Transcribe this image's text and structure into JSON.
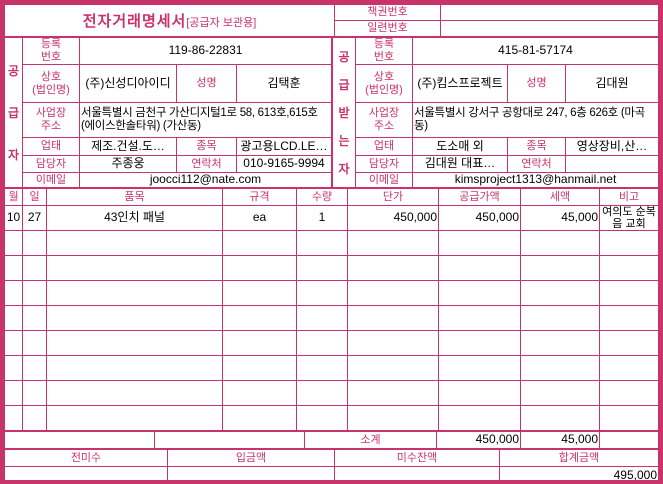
{
  "colors": {
    "accent": "#C8336A",
    "value_text": "#000000",
    "background": "#FFFFFF"
  },
  "header": {
    "title": "전자거래명세서",
    "title_suffix": "[공급자 보관용]",
    "book_no_label": "책권번호",
    "book_no_value": "",
    "serial_no_label": "일련번호",
    "serial_no_value": ""
  },
  "supplier": {
    "side_label": "공급자",
    "reg_no_label": "등록\n번호",
    "reg_no": "119-86-22831",
    "company_label": "상호\n(법인명)",
    "company": "(주)신성디아이디",
    "name_label": "성명",
    "name": "김택훈",
    "address_label": "사업장\n주소",
    "address": "서울특별시 금천구 가산디지털1로 58, 613호,615호(에이스한솔타워) (가산동)",
    "biz_type_label": "업태",
    "biz_type": "제조.건설.도…",
    "item_label": "종목",
    "item": "광고용LCD.LE…",
    "manager_label": "담당자",
    "manager": "주종웅",
    "contact_label": "연락처",
    "contact": "010-9165-9994",
    "email_label": "이메일",
    "email": "joocci112@nate.com"
  },
  "recipient": {
    "side_label": "공급받는자",
    "reg_no_label": "등록\n번호",
    "reg_no": "415-81-57174",
    "company_label": "상호\n(법인명)",
    "company": "(주)킴스프로젝트",
    "name_label": "성명",
    "name": "김대원",
    "address_label": "사업장\n주소",
    "address": "서울특별시 강서구 공항대로 247, 6층 626호 (마곡동)",
    "biz_type_label": "업태",
    "biz_type": "도소매 외",
    "item_label": "종목",
    "item": "영상장비,산…",
    "manager_label": "담당자",
    "manager": "김대원 대표…",
    "contact_label": "연락처",
    "contact": "",
    "email_label": "이메일",
    "email": "kimsproject1313@hanmail.net"
  },
  "items_table": {
    "headers": [
      "월",
      "일",
      "품목",
      "규격",
      "수량",
      "단가",
      "공급가액",
      "세액",
      "비고"
    ],
    "rows": [
      {
        "month": "10",
        "day": "27",
        "item": "43인치 패널",
        "spec": "ea",
        "qty": "1",
        "unit_price": "450,000",
        "supply_value": "450,000",
        "tax": "45,000",
        "note": "여의도 순복음 교회"
      }
    ],
    "empty_row_count": 8,
    "subtotal_label": "소계",
    "subtotal_supply": "450,000",
    "subtotal_tax": "45,000"
  },
  "footer": {
    "prev_balance_label": "전미수",
    "deposit_label": "입금액",
    "outstanding_label": "미수잔액",
    "total_label": "합계금액",
    "prev_balance": "",
    "deposit": "",
    "outstanding": "",
    "total": "495,000"
  }
}
